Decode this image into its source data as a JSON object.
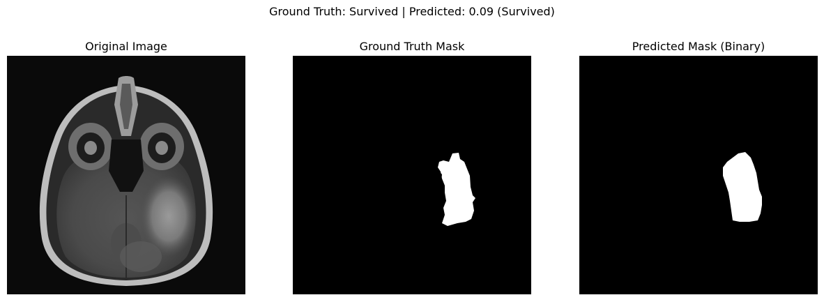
{
  "figure": {
    "suptitle": "Ground Truth: Survived | Predicted: 0.09 (Survived)"
  },
  "panels": [
    {
      "title": "Original Image",
      "content": "brain MRI axial slice"
    },
    {
      "title": "Ground Truth Mask",
      "content": "binary tumor mask"
    },
    {
      "title": "Predicted Mask (Binary)",
      "content": "binary predicted mask"
    }
  ],
  "colors": {
    "background": "#ffffff",
    "mask_background": "#000000",
    "mask_foreground": "#ffffff"
  }
}
